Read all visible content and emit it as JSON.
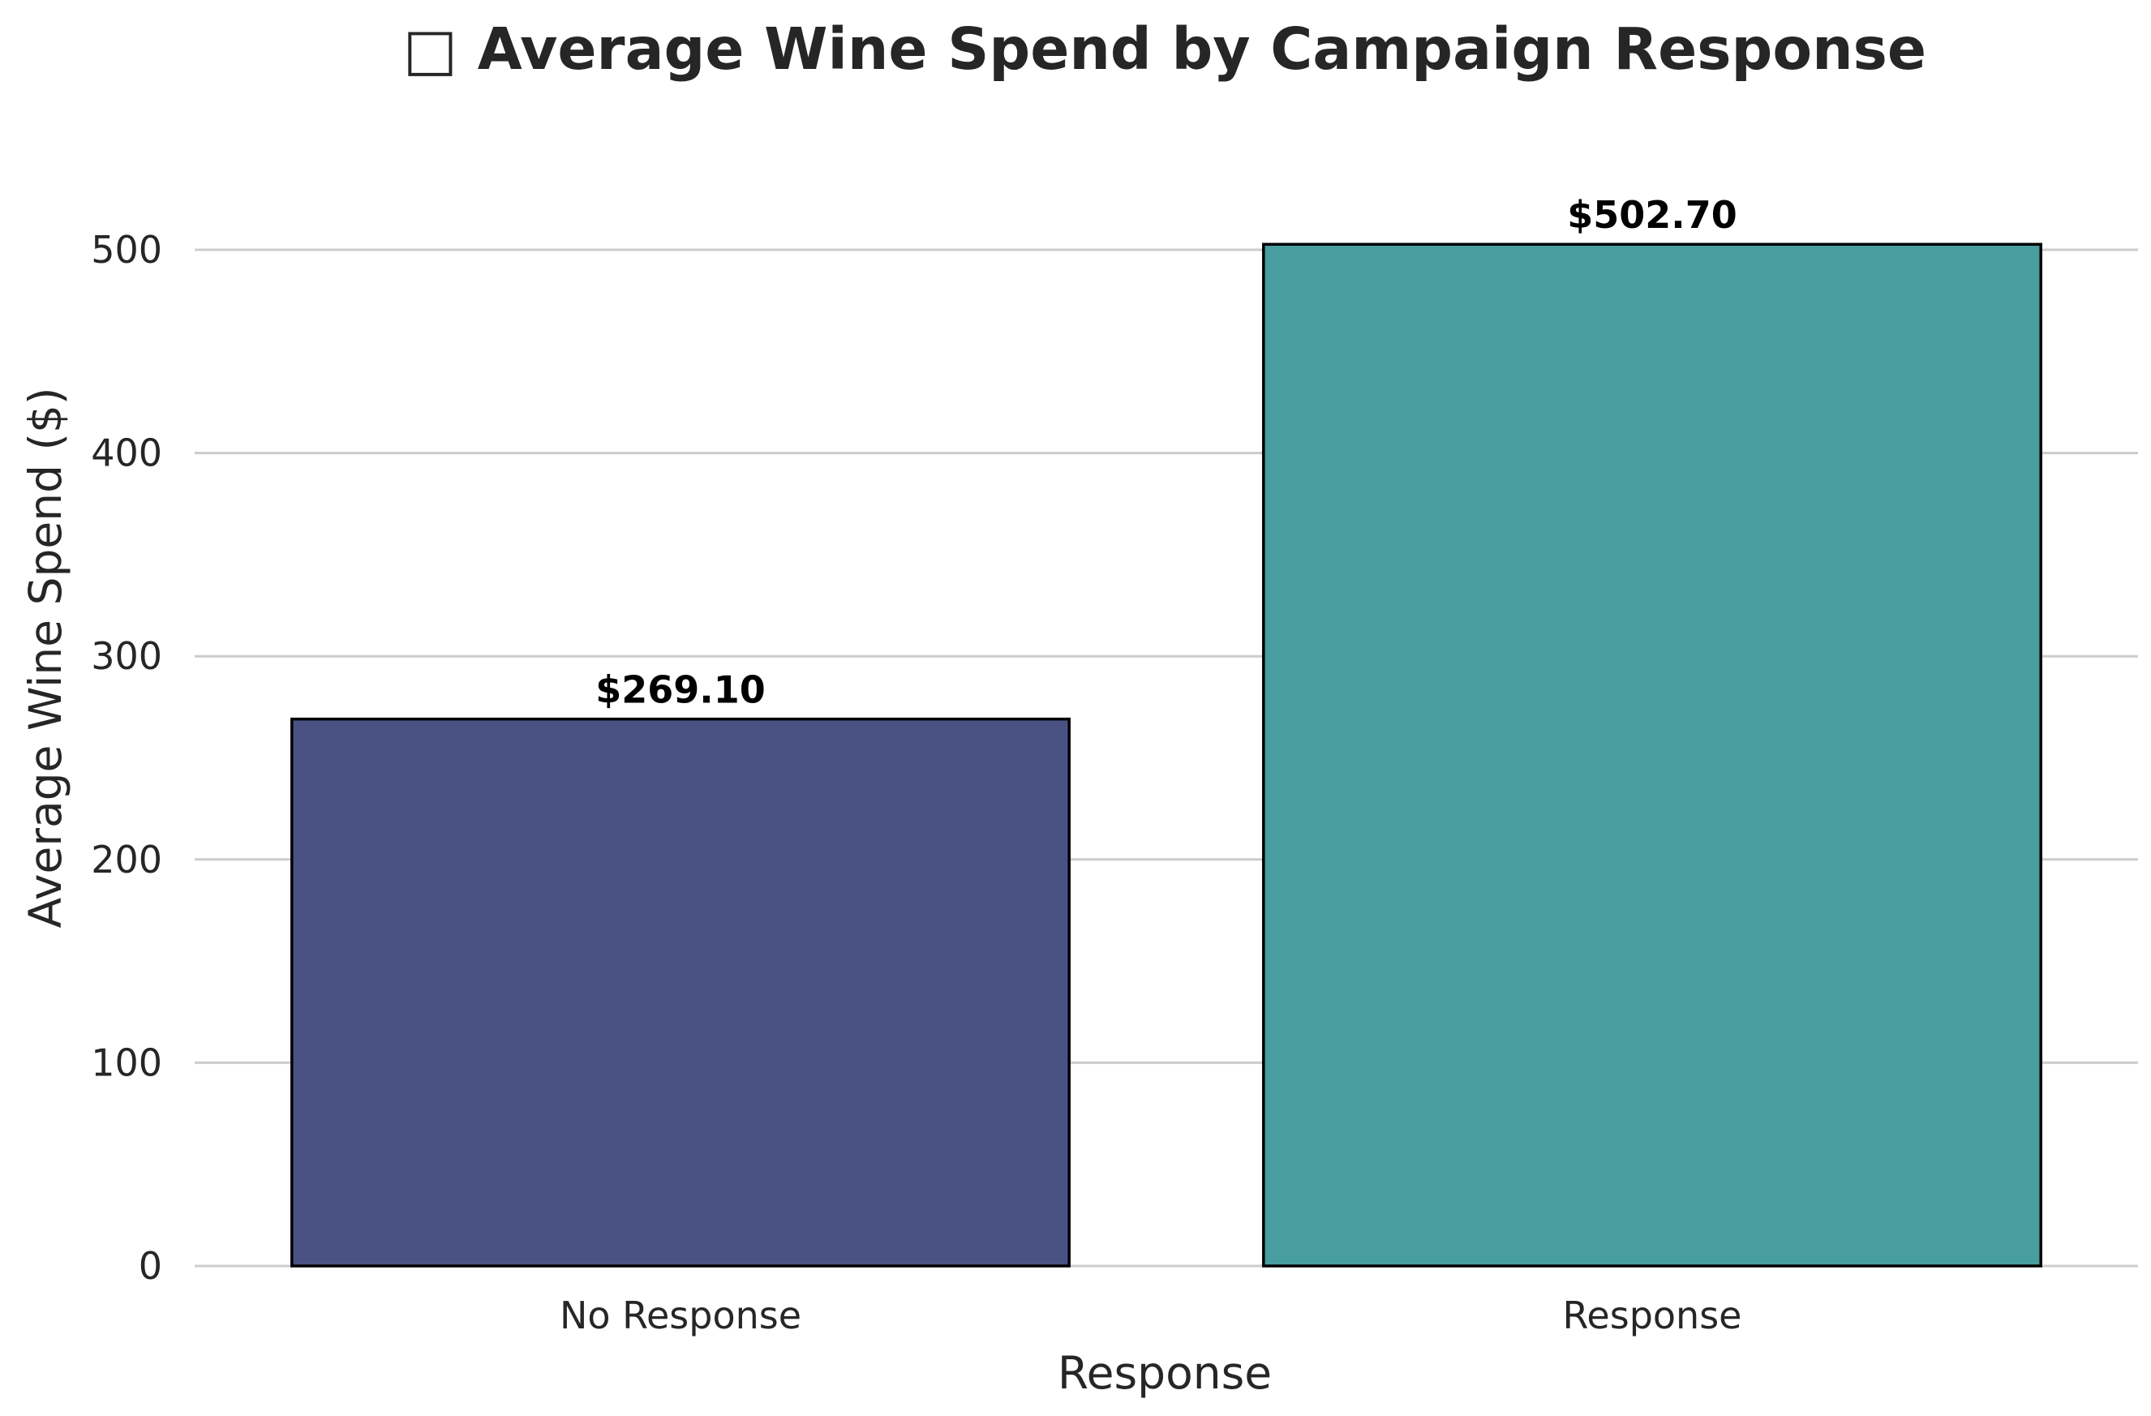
{
  "chart_data": {
    "type": "bar",
    "title": "□ Average Wine Spend by Campaign Response",
    "xlabel": "Response",
    "ylabel": "Average Wine Spend ($)",
    "categories": [
      "No Response",
      "Response"
    ],
    "values": [
      269.1,
      502.7
    ],
    "value_labels": [
      "$269.10",
      "$502.70"
    ],
    "colors": [
      "#4a5283",
      "#489d9e"
    ],
    "ylim": [
      0,
      540
    ],
    "yticks": [
      0,
      100,
      200,
      300,
      400,
      500
    ],
    "grid": "horizontal",
    "legend": "none"
  }
}
